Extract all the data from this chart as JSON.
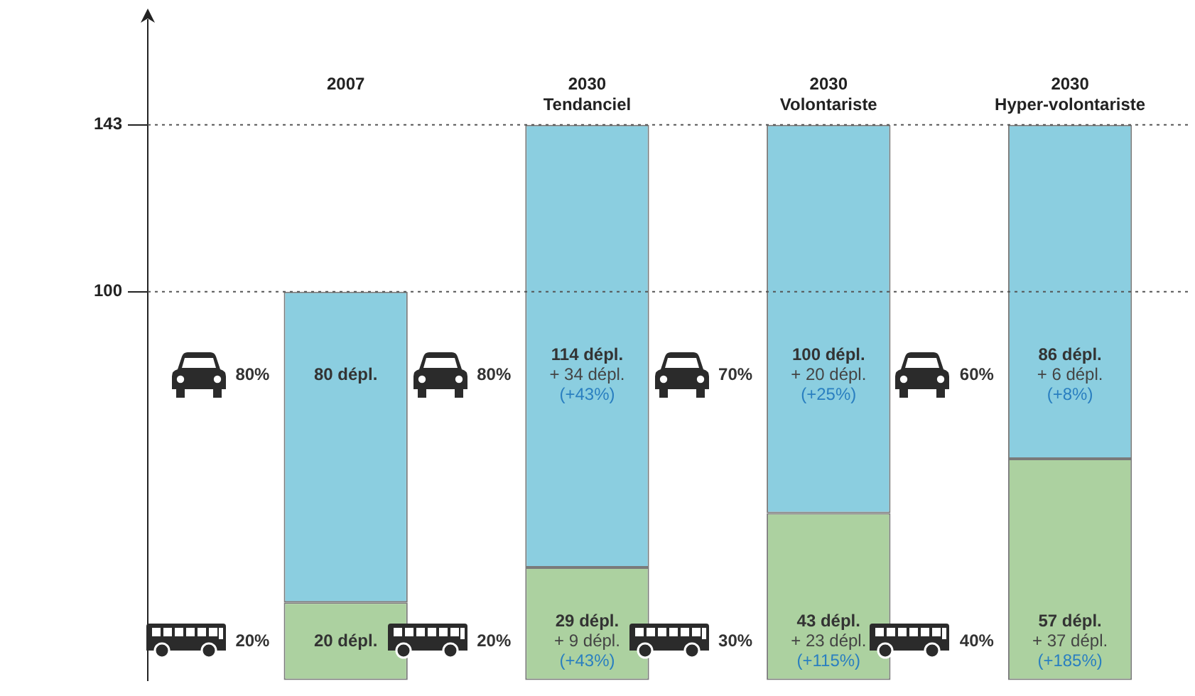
{
  "chart_data": {
    "type": "bar",
    "stacked": true,
    "categories": [
      "2007",
      "2030\nTendanciel",
      "2030\nVolontariste",
      "2030\nHyper-volontariste"
    ],
    "series": [
      {
        "color": "#acd1a0",
        "values": [
          20,
          29,
          43,
          57
        ],
        "value_labels": [
          "20 dépl.",
          "29 dépl.\n+ 9 dépl.\n(+43%)",
          "43 dépl.\n+ 23 dépl.\n(+115%)",
          "57 dépl.\n+ 37 dépl.\n(+185%)"
        ]
      },
      {
        "color": "#8bcee0",
        "values": [
          80,
          114,
          100,
          86
        ],
        "value_labels": [
          "80 dépl.",
          "114 dépl.\n+ 34 dépl.\n(+43%)",
          "100 dépl.\n+ 20 dépl.\n(+25%)",
          "86 dépl.\n+ 6 dépl.\n(+8%)"
        ]
      }
    ],
    "ylim": [
      0,
      170
    ],
    "yticks": [
      100,
      143
    ],
    "ref_lines": [
      {
        "axis": "y",
        "value": 100,
        "color": "#555555",
        "line_style": "dotted"
      },
      {
        "axis": "y",
        "value": 143,
        "color": "#555555",
        "line_style": "dotted"
      }
    ],
    "annotations": [
      "20%",
      "80%",
      "20%",
      "80%",
      "30%",
      "70%",
      "40%",
      "60%"
    ],
    "legend": false
  }
}
